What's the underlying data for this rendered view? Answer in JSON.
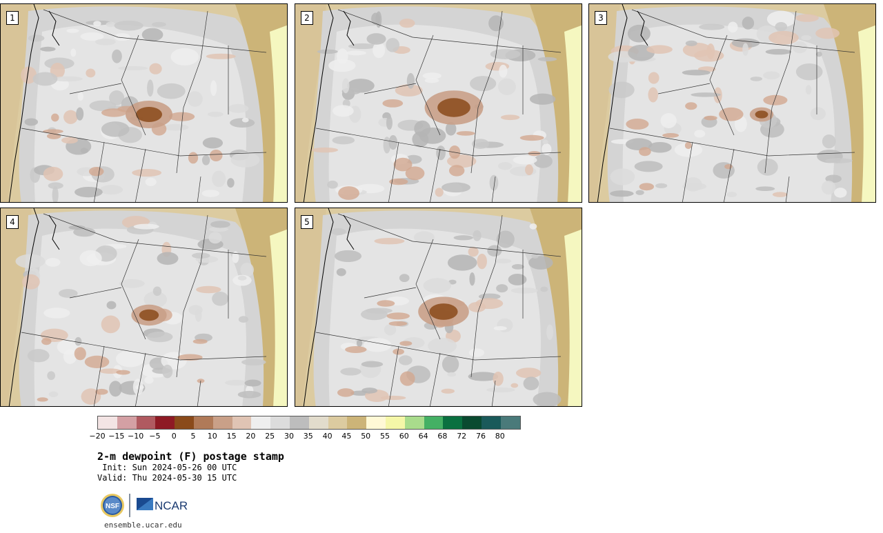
{
  "panels": [
    {
      "label": "1"
    },
    {
      "label": "2"
    },
    {
      "label": "3"
    },
    {
      "label": "4"
    },
    {
      "label": "5"
    }
  ],
  "colorbar": {
    "colors": [
      "#f3e4e4",
      "#d4a0a4",
      "#b05a60",
      "#8e1a24",
      "#8a4a1a",
      "#b07a58",
      "#c9a088",
      "#e0c4b4",
      "#eeeeee",
      "#dcdcdc",
      "#bdbdbd",
      "#e2dccc",
      "#dccba0",
      "#ccb478",
      "#fff9d6",
      "#f5f7a8",
      "#a9dc8c",
      "#44b064",
      "#0a7040",
      "#0a4a30",
      "#1a5a5a",
      "#4a7a7a"
    ],
    "ticks": [
      "−20",
      "−15",
      "−10",
      "−5",
      "0",
      "5",
      "10",
      "15",
      "20",
      "25",
      "30",
      "35",
      "40",
      "45",
      "50",
      "55",
      "60",
      "64",
      "68",
      "72",
      "76",
      "80"
    ]
  },
  "title": "2-m dewpoint (F) postage stamp",
  "init": " Init: Sun 2024-05-26 00 UTC",
  "valid": "Valid: Thu 2024-05-30 15 UTC",
  "logo_left": "NSF",
  "logo_right": "NCAR",
  "url": "ensemble.ucar.edu"
}
